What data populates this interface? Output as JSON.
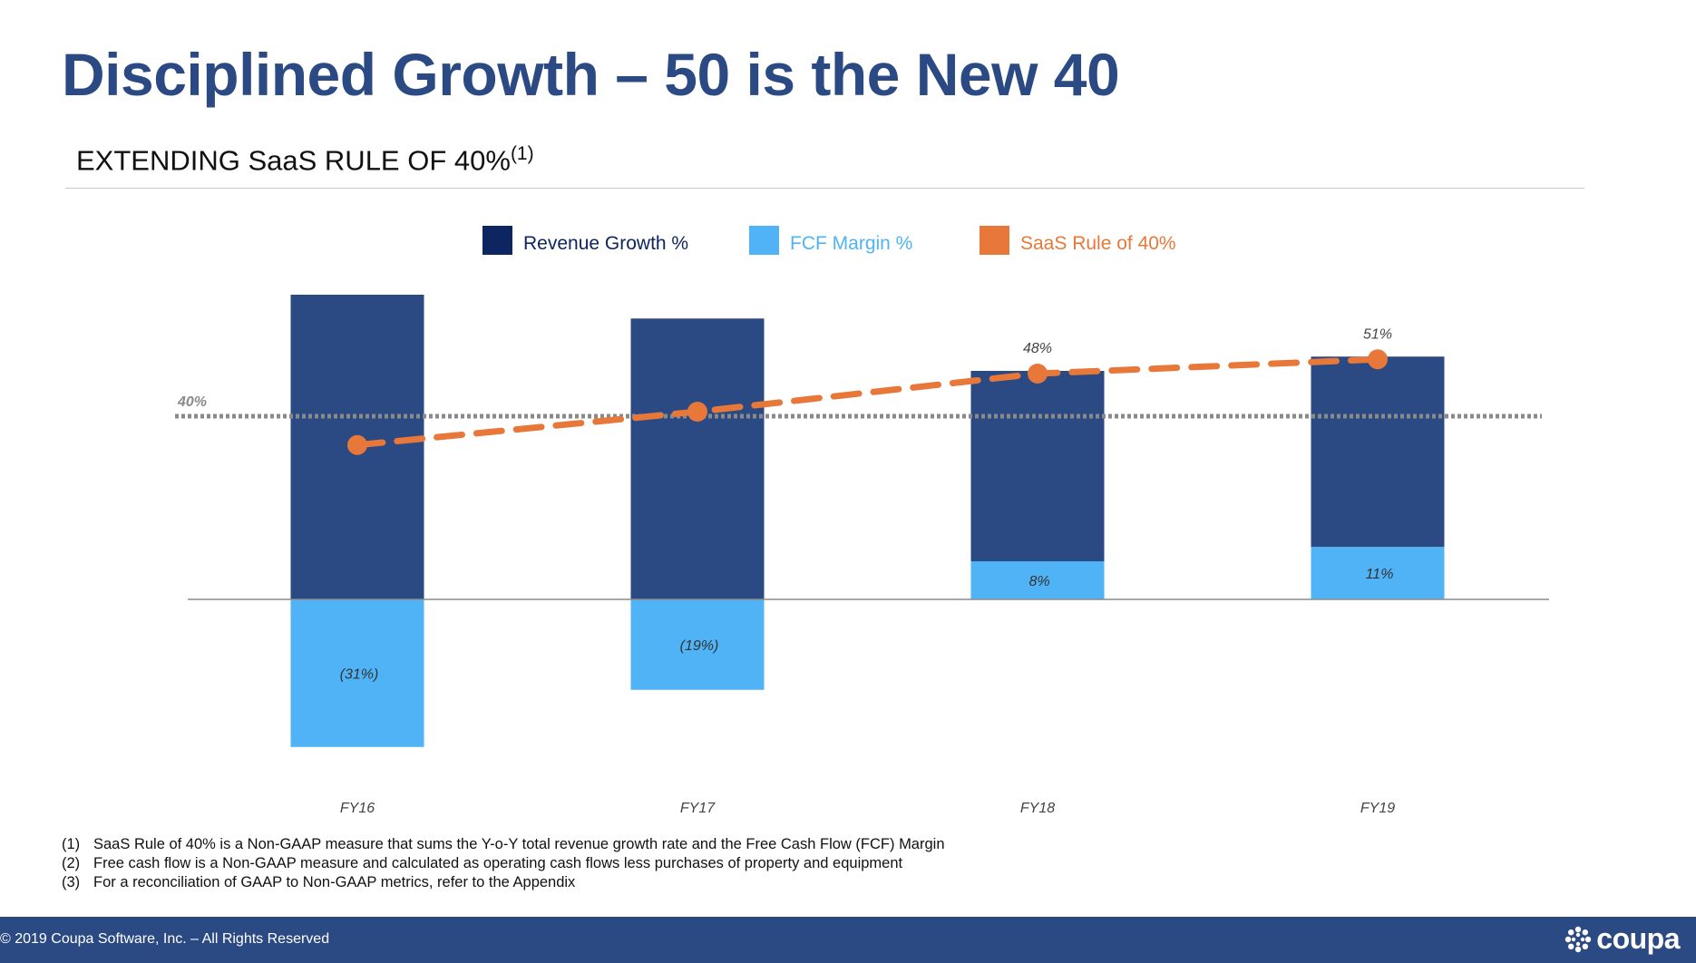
{
  "slide": {
    "title": "Disciplined Growth – 50 is the New 40",
    "subtitle": "EXTENDING SaaS RULE OF 40%",
    "subtitle_sup": "(1)"
  },
  "chart_data": {
    "type": "bar",
    "categories": [
      "FY16",
      "FY17",
      "FY18",
      "FY19"
    ],
    "series": [
      {
        "name": "Revenue Growth %",
        "kind": "bar",
        "color": "#2b4a83",
        "values": [
          64,
          59,
          40,
          40
        ]
      },
      {
        "name": "FCF Margin %",
        "kind": "bar",
        "color": "#4fb3f6",
        "values": [
          -31,
          -19,
          8,
          11
        ]
      },
      {
        "name": "SaaS Rule of 40%",
        "kind": "line",
        "color": "#e8783a",
        "values": [
          33,
          40,
          48,
          51
        ]
      }
    ],
    "data_labels": {
      "fcf": [
        "(31%)",
        "(19%)",
        "8%",
        "11%"
      ],
      "rule": [
        "",
        "",
        "48%",
        "51%"
      ]
    },
    "reference_line": {
      "value": 40,
      "label": "40%"
    },
    "legend": {
      "position": "top-center",
      "items": [
        {
          "label": "Revenue Growth %",
          "swatch": "#0d2560",
          "text_color": "#0d2560"
        },
        {
          "label": "FCF Margin %",
          "swatch": "#4fb3f6",
          "text_color": "#4fb3f6"
        },
        {
          "label": "SaaS Rule of 40%",
          "swatch": "#e8783a",
          "text_color": "#e8783a"
        }
      ]
    },
    "ylim": [
      -35,
      66
    ],
    "grid": false
  },
  "footnotes": [
    {
      "num": "(1)",
      "text": "SaaS Rule of 40%  is a Non-GAAP measure  that sums the Y-o-Y total revenue growth rate and the Free Cash Flow (FCF) Margin"
    },
    {
      "num": "(2)",
      "text": "Free cash flow is a Non-GAAP measure and calculated as operating cash flows less purchases of property and equipment"
    },
    {
      "num": "(3)",
      "text": "For a reconciliation of GAAP to Non-GAAP metrics, refer to the Appendix"
    }
  ],
  "footer": {
    "copyright": "© 2019 Coupa Software, Inc. – All Rights Reserved",
    "logo_text": "coupa",
    "logo_icon": "coupa-burst-icon"
  }
}
